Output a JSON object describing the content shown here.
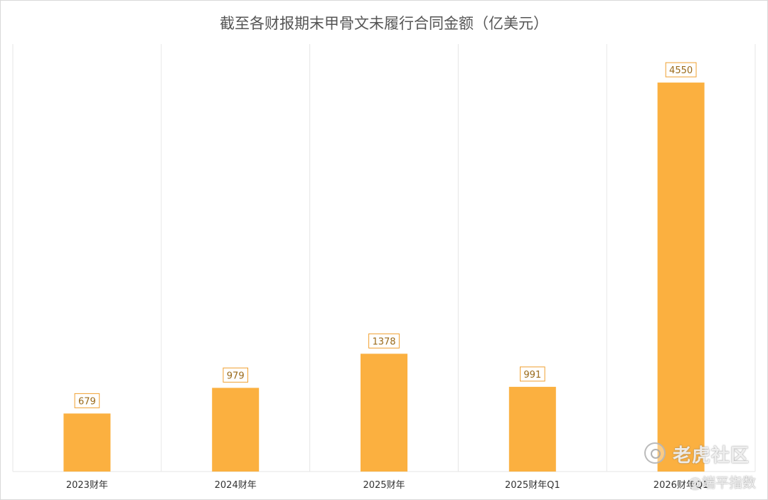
{
  "chart_data": {
    "type": "bar",
    "title": "截至各财报期末甲骨文未履行合同金额（亿美元）",
    "categories": [
      "2023财年",
      "2024财年",
      "2025财年",
      "2025财年Q1",
      "2026财年Q1"
    ],
    "values": [
      679,
      979,
      1378,
      991,
      4550
    ],
    "data_labels": [
      "679",
      "979",
      "1378",
      "991",
      "4550"
    ],
    "xlabel": "",
    "ylabel": "",
    "ylim": [
      0,
      5000
    ],
    "grid": "vertical separators between categories",
    "legend": "none",
    "colors": {
      "bar": "#FBB040",
      "label_border": "#F0A030",
      "title": "#555555",
      "grid": "#E6E6E6"
    }
  },
  "watermark": {
    "icon": "tiger-logo-icon",
    "brand": "老虎社区",
    "author": "@端平指数"
  }
}
